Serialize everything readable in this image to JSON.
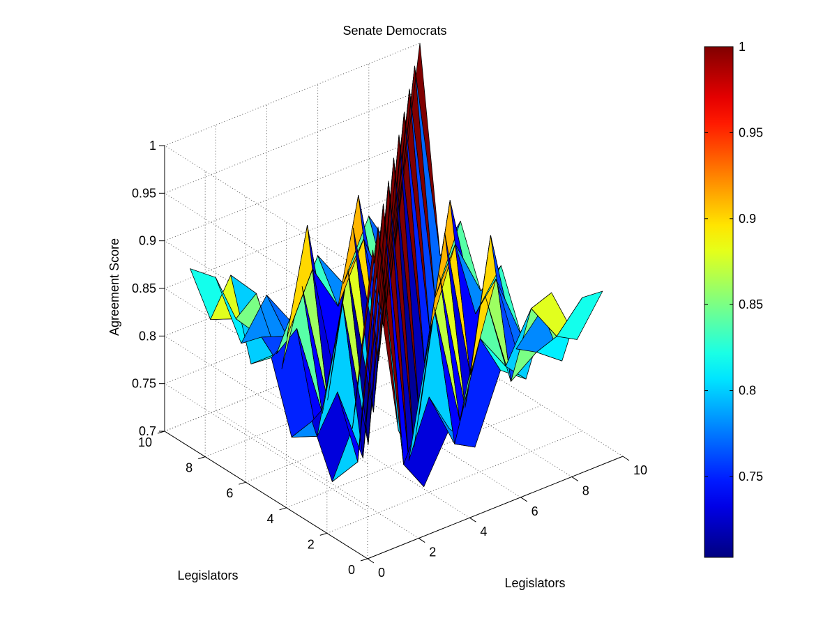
{
  "chart_data": {
    "type": "surface",
    "title": "Senate Democrats",
    "xlabel": "Legislators",
    "ylabel": "Legislators",
    "zlabel": "Agreement Score",
    "xlim": [
      0,
      10
    ],
    "ylim": [
      0,
      10
    ],
    "zlim": [
      0.7,
      1
    ],
    "x_ticks": [
      "0",
      "2",
      "4",
      "6",
      "8",
      "10"
    ],
    "y_ticks": [
      "0",
      "2",
      "4",
      "6",
      "8",
      "10"
    ],
    "z_ticks": [
      "0.7",
      "0.75",
      "0.8",
      "0.85",
      "0.9",
      "0.95",
      "1"
    ],
    "grid": true,
    "colormap": "jet",
    "colorbar": {
      "range": [
        0.703,
        1
      ],
      "ticks": [
        "0.75",
        "0.8",
        "0.85",
        "0.9",
        "0.95",
        "1"
      ],
      "tick_values": [
        0.75,
        0.8,
        0.85,
        0.9,
        0.95,
        1.0
      ]
    },
    "x": [
      1,
      2,
      3,
      4,
      5,
      6,
      7,
      8,
      9,
      10
    ],
    "y": [
      1,
      2,
      3,
      4,
      5,
      6,
      7,
      8,
      9,
      10
    ],
    "z": [
      [
        1.0,
        0.8,
        0.73,
        0.78,
        0.75,
        0.82,
        0.8,
        0.88,
        0.82,
        0.86
      ],
      [
        0.8,
        1.0,
        0.74,
        0.8,
        0.74,
        0.84,
        0.8,
        0.85,
        0.81,
        0.84
      ],
      [
        0.73,
        0.74,
        1.0,
        0.72,
        0.87,
        0.74,
        0.86,
        0.76,
        0.78,
        0.76
      ],
      [
        0.78,
        0.8,
        0.72,
        1.0,
        0.71,
        0.88,
        0.73,
        0.9,
        0.77,
        0.8
      ],
      [
        0.75,
        0.74,
        0.87,
        0.71,
        1.0,
        0.72,
        0.9,
        0.74,
        0.83,
        0.76
      ],
      [
        0.82,
        0.84,
        0.74,
        0.88,
        0.72,
        1.0,
        0.75,
        0.91,
        0.78,
        0.82
      ],
      [
        0.8,
        0.8,
        0.86,
        0.73,
        0.9,
        0.75,
        1.0,
        0.76,
        0.84,
        0.78
      ],
      [
        0.88,
        0.85,
        0.76,
        0.9,
        0.74,
        0.91,
        0.76,
        1.0,
        0.77,
        0.84
      ],
      [
        0.82,
        0.81,
        0.78,
        0.77,
        0.83,
        0.78,
        0.84,
        0.77,
        1.0,
        0.79
      ],
      [
        0.86,
        0.84,
        0.76,
        0.8,
        0.76,
        0.82,
        0.78,
        0.84,
        0.79,
        1.0
      ]
    ]
  }
}
